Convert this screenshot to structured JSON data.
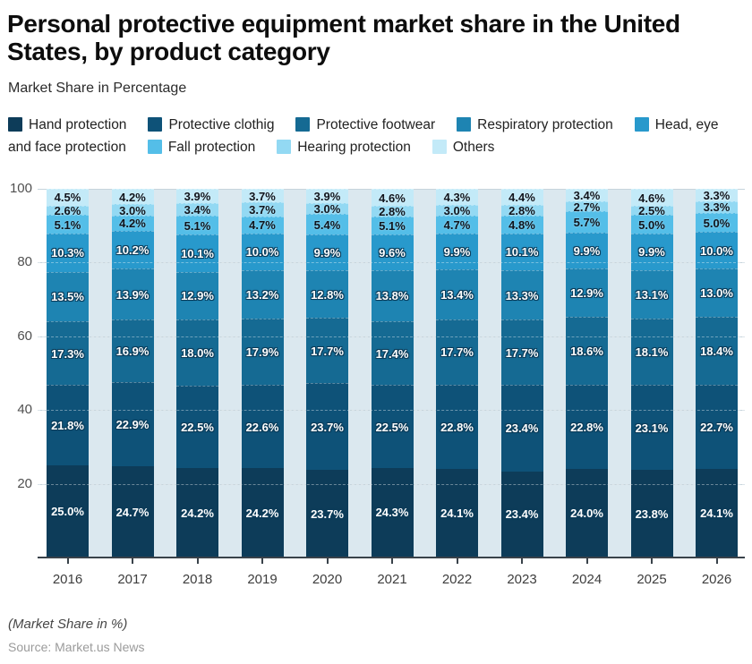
{
  "title": "Personal protective equipment market share in the United States, by product category",
  "subtitle": "Market Share in Percentage",
  "footnote": "(Market Share in %)",
  "source": "Source: Market.us News",
  "chart_data": {
    "type": "bar",
    "stacked": true,
    "value_suffix": "%",
    "categories": [
      "2016",
      "2017",
      "2018",
      "2019",
      "2020",
      "2021",
      "2022",
      "2023",
      "2024",
      "2025",
      "2026"
    ],
    "series": [
      {
        "name": "Hand protection",
        "color": "#0d3c59",
        "label_style": "light",
        "values": [
          25.0,
          24.7,
          24.2,
          24.2,
          23.7,
          24.3,
          24.1,
          23.4,
          24.0,
          23.8,
          24.1
        ]
      },
      {
        "name": "Protective clothig",
        "color": "#0e5278",
        "label_style": "light",
        "values": [
          21.8,
          22.9,
          22.5,
          22.6,
          23.7,
          22.5,
          22.8,
          23.4,
          22.8,
          23.1,
          22.7
        ]
      },
      {
        "name": "Protective footwear",
        "color": "#156a93",
        "label_style": "light",
        "values": [
          17.3,
          16.9,
          18.0,
          17.9,
          17.7,
          17.4,
          17.7,
          17.7,
          18.6,
          18.1,
          18.4
        ]
      },
      {
        "name": "Respiratory protection",
        "color": "#1e84b2",
        "label_style": "light",
        "values": [
          13.5,
          13.9,
          12.9,
          13.2,
          12.8,
          13.8,
          13.4,
          13.3,
          12.9,
          13.1,
          13.0
        ]
      },
      {
        "name": "Head, eye and face protection",
        "color": "#2899cc",
        "label_style": "light",
        "values": [
          10.3,
          10.2,
          10.1,
          10.0,
          9.9,
          9.6,
          9.9,
          10.1,
          9.9,
          9.9,
          10.0
        ]
      },
      {
        "name": "Fall protection",
        "color": "#54bee8",
        "label_style": "dark",
        "values": [
          5.1,
          4.2,
          5.1,
          4.7,
          5.4,
          5.1,
          4.7,
          4.8,
          5.7,
          5.0,
          5.0
        ]
      },
      {
        "name": "Hearing protection",
        "color": "#93d9f3",
        "label_style": "dark",
        "values": [
          2.6,
          3.0,
          3.4,
          3.7,
          3.0,
          2.8,
          3.0,
          2.8,
          2.7,
          2.5,
          3.3
        ]
      },
      {
        "name": "Others",
        "color": "#c3eaf8",
        "label_style": "dark",
        "values": [
          4.5,
          4.2,
          3.9,
          3.7,
          3.9,
          4.6,
          4.3,
          4.4,
          3.4,
          4.6,
          3.3
        ]
      }
    ],
    "ylim": [
      0,
      100
    ],
    "yticks": [
      20,
      40,
      60,
      80,
      100
    ],
    "legend_position": "top",
    "colors": {
      "plot_gap_bg": "#dbe8ef",
      "gridline": "#c6d4dc",
      "axis": "#39424a"
    }
  }
}
